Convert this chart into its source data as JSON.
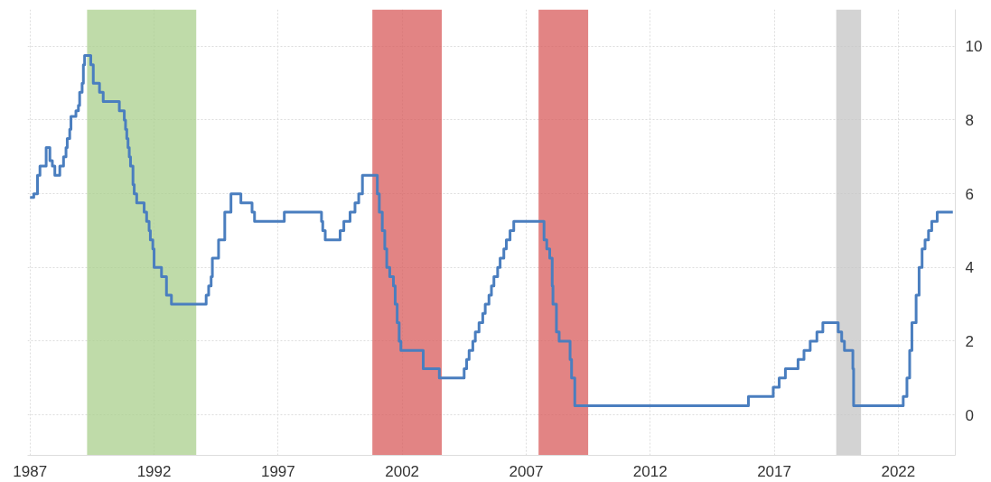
{
  "chart_data": {
    "type": "step",
    "xlim": [
      1986.9,
      2024.3
    ],
    "xticks": [
      1987,
      1992,
      1997,
      2002,
      2007,
      2012,
      2017,
      2022
    ],
    "ylim": [
      -1.1,
      11
    ],
    "yticks": [
      0,
      2,
      4,
      6,
      8,
      10
    ],
    "grid": true,
    "line_style": "solid",
    "series": [
      {
        "color": "#4a7ebf",
        "x": [
          1987.0,
          1987.15,
          1987.3,
          1987.4,
          1987.65,
          1987.8,
          1987.9,
          1988.0,
          1988.2,
          1988.35,
          1988.45,
          1988.5,
          1988.6,
          1988.65,
          1988.85,
          1988.95,
          1989.0,
          1989.1,
          1989.15,
          1989.2,
          1989.45,
          1989.55,
          1989.8,
          1989.95,
          1990.6,
          1990.8,
          1990.85,
          1990.9,
          1990.95,
          1991.0,
          1991.05,
          1991.15,
          1991.2,
          1991.3,
          1991.6,
          1991.7,
          1991.8,
          1991.85,
          1991.95,
          1992.0,
          1992.3,
          1992.5,
          1992.7,
          1994.1,
          1994.2,
          1994.3,
          1994.35,
          1994.6,
          1994.85,
          1995.1,
          1995.5,
          1995.95,
          1996.05,
          1997.25,
          1998.75,
          1998.8,
          1998.9,
          1999.5,
          1999.65,
          1999.9,
          2000.1,
          2000.25,
          2000.4,
          2001.0,
          2001.08,
          2001.2,
          2001.3,
          2001.38,
          2001.5,
          2001.65,
          2001.72,
          2001.8,
          2001.88,
          2001.95,
          2002.85,
          2003.5,
          2004.5,
          2004.6,
          2004.7,
          2004.85,
          2004.95,
          2005.1,
          2005.25,
          2005.35,
          2005.5,
          2005.6,
          2005.7,
          2005.85,
          2005.95,
          2006.1,
          2006.2,
          2006.35,
          2006.5,
          2007.72,
          2007.83,
          2007.95,
          2008.05,
          2008.08,
          2008.22,
          2008.33,
          2008.77,
          2008.83,
          2008.96,
          2015.96,
          2016.96,
          2017.2,
          2017.45,
          2017.96,
          2018.2,
          2018.45,
          2018.72,
          2018.96,
          2019.58,
          2019.72,
          2019.83,
          2020.17,
          2020.2,
          2022.2,
          2022.35,
          2022.46,
          2022.55,
          2022.72,
          2022.84,
          2022.96,
          2023.08,
          2023.22,
          2023.35,
          2023.57,
          2024.2
        ],
        "values": [
          5.9,
          6.0,
          6.5,
          6.75,
          7.25,
          6.9,
          6.75,
          6.5,
          6.75,
          7.0,
          7.25,
          7.5,
          7.75,
          8.1,
          8.25,
          8.4,
          8.75,
          9.0,
          9.5,
          9.75,
          9.5,
          9.0,
          8.75,
          8.5,
          8.25,
          8.0,
          7.75,
          7.5,
          7.25,
          7.0,
          6.75,
          6.25,
          6.0,
          5.75,
          5.5,
          5.25,
          5.0,
          4.75,
          4.5,
          4.0,
          3.75,
          3.25,
          3.0,
          3.25,
          3.5,
          3.75,
          4.25,
          4.75,
          5.5,
          6.0,
          5.75,
          5.5,
          5.25,
          5.5,
          5.25,
          5.0,
          4.75,
          5.0,
          5.25,
          5.5,
          5.75,
          6.0,
          6.5,
          6.0,
          5.5,
          5.0,
          4.5,
          4.0,
          3.75,
          3.5,
          3.0,
          2.5,
          2.0,
          1.75,
          1.25,
          1.0,
          1.25,
          1.5,
          1.75,
          2.0,
          2.25,
          2.5,
          2.75,
          3.0,
          3.25,
          3.5,
          3.75,
          4.0,
          4.25,
          4.5,
          4.75,
          5.0,
          5.25,
          4.75,
          4.5,
          4.25,
          3.5,
          3.0,
          2.25,
          2.0,
          1.5,
          1.0,
          0.25,
          0.5,
          0.75,
          1.0,
          1.25,
          1.5,
          1.75,
          2.0,
          2.25,
          2.5,
          2.25,
          2.0,
          1.75,
          1.25,
          0.25,
          0.5,
          1.0,
          1.75,
          2.5,
          3.25,
          4.0,
          4.5,
          4.75,
          5.0,
          5.25,
          5.5,
          5.5
        ]
      }
    ],
    "bands": [
      {
        "axis": "x",
        "from": 1989.3,
        "to": 1993.7,
        "color": "#a9cf8c"
      },
      {
        "axis": "x",
        "from": 2000.8,
        "to": 2003.6,
        "color": "#d85b5b"
      },
      {
        "axis": "x",
        "from": 2007.5,
        "to": 2009.5,
        "color": "#d85b5b"
      },
      {
        "axis": "x",
        "from": 2019.5,
        "to": 2020.5,
        "color": "#c4c4c4"
      }
    ]
  }
}
